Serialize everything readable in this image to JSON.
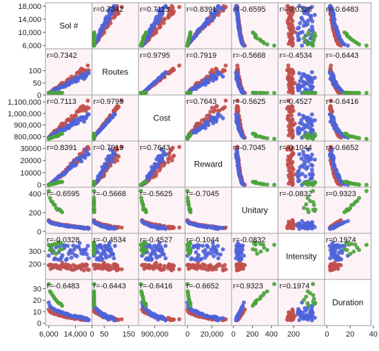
{
  "chart_data": {
    "type": "scatter",
    "variables": [
      "Sol #",
      "Routes",
      "Cost",
      "Reward",
      "Unitary",
      "Intensity",
      "Duration"
    ],
    "ranges": [
      [
        5000,
        19000
      ],
      [
        0,
        190
      ],
      [
        760000,
        1160000
      ],
      [
        -2000,
        36000
      ],
      [
        -20,
        470
      ],
      [
        80,
        440
      ],
      [
        -2,
        38
      ]
    ],
    "y_ticks": [
      {
        "values": [
          6000,
          10000,
          14000,
          18000
        ],
        "labels": [
          "6,000",
          "10,000",
          "14,000",
          "18,000"
        ]
      },
      {
        "values": [
          0,
          50,
          100
        ],
        "labels": [
          "0",
          "50",
          "100"
        ]
      },
      {
        "values": [
          800000,
          900000,
          1000000,
          1100000
        ],
        "labels": [
          "800,000",
          "900,000",
          "1,000,000",
          "1,100,000"
        ]
      },
      {
        "values": [
          0,
          10000,
          20000,
          30000
        ],
        "labels": [
          "0",
          "10000",
          "20000",
          "30000"
        ]
      },
      {
        "values": [
          0,
          200,
          400
        ],
        "labels": [
          "0",
          "200",
          "400"
        ]
      },
      {
        "values": [
          200,
          300
        ],
        "labels": [
          "200",
          "300"
        ]
      },
      {
        "values": [
          0,
          10,
          20,
          30
        ],
        "labels": [
          "0",
          "10",
          "20",
          "30"
        ]
      }
    ],
    "x_ticks": [
      {
        "values": [
          6000,
          14000
        ],
        "labels": [
          "6,000",
          "14,000"
        ]
      },
      {
        "values": [
          0,
          50,
          150
        ],
        "labels": [
          "0",
          "50",
          "150"
        ]
      },
      {
        "values": [
          900000
        ],
        "labels": [
          "900,000"
        ]
      },
      {
        "values": [
          0,
          20000
        ],
        "labels": [
          "0",
          "20,000"
        ]
      },
      {
        "values": [
          0,
          200,
          400
        ],
        "labels": [
          "0",
          "200",
          "400"
        ]
      },
      {
        "values": [
          200
        ],
        "labels": [
          "200"
        ]
      },
      {
        "values": [
          0,
          20,
          40
        ],
        "labels": [
          "0",
          "20",
          "40"
        ]
      }
    ],
    "correlations": [
      {
        "pair": [
          "Sol #",
          "Routes"
        ],
        "r": "0.7342"
      },
      {
        "pair": [
          "Sol #",
          "Cost"
        ],
        "r": "0.7113"
      },
      {
        "pair": [
          "Sol #",
          "Reward"
        ],
        "r": "0.8391"
      },
      {
        "pair": [
          "Sol #",
          "Unitary"
        ],
        "r": "-0.6595"
      },
      {
        "pair": [
          "Sol #",
          "Intensity"
        ],
        "r": "-0.0328"
      },
      {
        "pair": [
          "Sol #",
          "Duration"
        ],
        "r": "-0.6483"
      },
      {
        "pair": [
          "Routes",
          "Cost"
        ],
        "r": "0.9795"
      },
      {
        "pair": [
          "Routes",
          "Reward"
        ],
        "r": "0.7919"
      },
      {
        "pair": [
          "Routes",
          "Unitary"
        ],
        "r": "-0.5668"
      },
      {
        "pair": [
          "Routes",
          "Intensity"
        ],
        "r": "-0.4534"
      },
      {
        "pair": [
          "Routes",
          "Duration"
        ],
        "r": "-0.6443"
      },
      {
        "pair": [
          "Cost",
          "Reward"
        ],
        "r": "0.7643"
      },
      {
        "pair": [
          "Cost",
          "Unitary"
        ],
        "r": "-0.5625"
      },
      {
        "pair": [
          "Cost",
          "Intensity"
        ],
        "r": "-0.4527"
      },
      {
        "pair": [
          "Cost",
          "Duration"
        ],
        "r": "-0.6416"
      },
      {
        "pair": [
          "Reward",
          "Unitary"
        ],
        "r": "-0.7045"
      },
      {
        "pair": [
          "Reward",
          "Intensity"
        ],
        "r": "-0.1044"
      },
      {
        "pair": [
          "Reward",
          "Duration"
        ],
        "r": "-0.6652"
      },
      {
        "pair": [
          "Unitary",
          "Intensity"
        ],
        "r": "-0.0832"
      },
      {
        "pair": [
          "Unitary",
          "Duration"
        ],
        "r": "0.9323"
      },
      {
        "pair": [
          "Intensity",
          "Duration"
        ],
        "r": "0.1974"
      }
    ],
    "groups": [
      {
        "color": "#c0504d",
        "n": 45,
        "sol": [
          6000,
          18000
        ],
        "routes": [
          5,
          130
        ],
        "cost": [
          790000,
          1140000
        ],
        "reward": [
          0,
          34000
        ],
        "unitary": [
          30,
          120
        ],
        "intensity": [
          150,
          210
        ],
        "duration": [
          2,
          12
        ]
      },
      {
        "color": "#4f63d8",
        "n": 45,
        "sol": [
          6000,
          18000
        ],
        "routes": [
          5,
          100
        ],
        "cost": [
          790000,
          1020000
        ],
        "reward": [
          0,
          32000
        ],
        "unitary": [
          25,
          110
        ],
        "intensity": [
          230,
          370
        ],
        "duration": [
          2,
          18
        ]
      },
      {
        "color": "#4aa33a",
        "n": 12,
        "sol": [
          6000,
          10000
        ],
        "routes": [
          0,
          10
        ],
        "cost": [
          780000,
          830000
        ],
        "reward": [
          0,
          3000
        ],
        "unitary": [
          180,
          430
        ],
        "intensity": [
          190,
          370
        ],
        "duration": [
          15,
          34
        ]
      }
    ],
    "grid": false,
    "legend": "none"
  }
}
